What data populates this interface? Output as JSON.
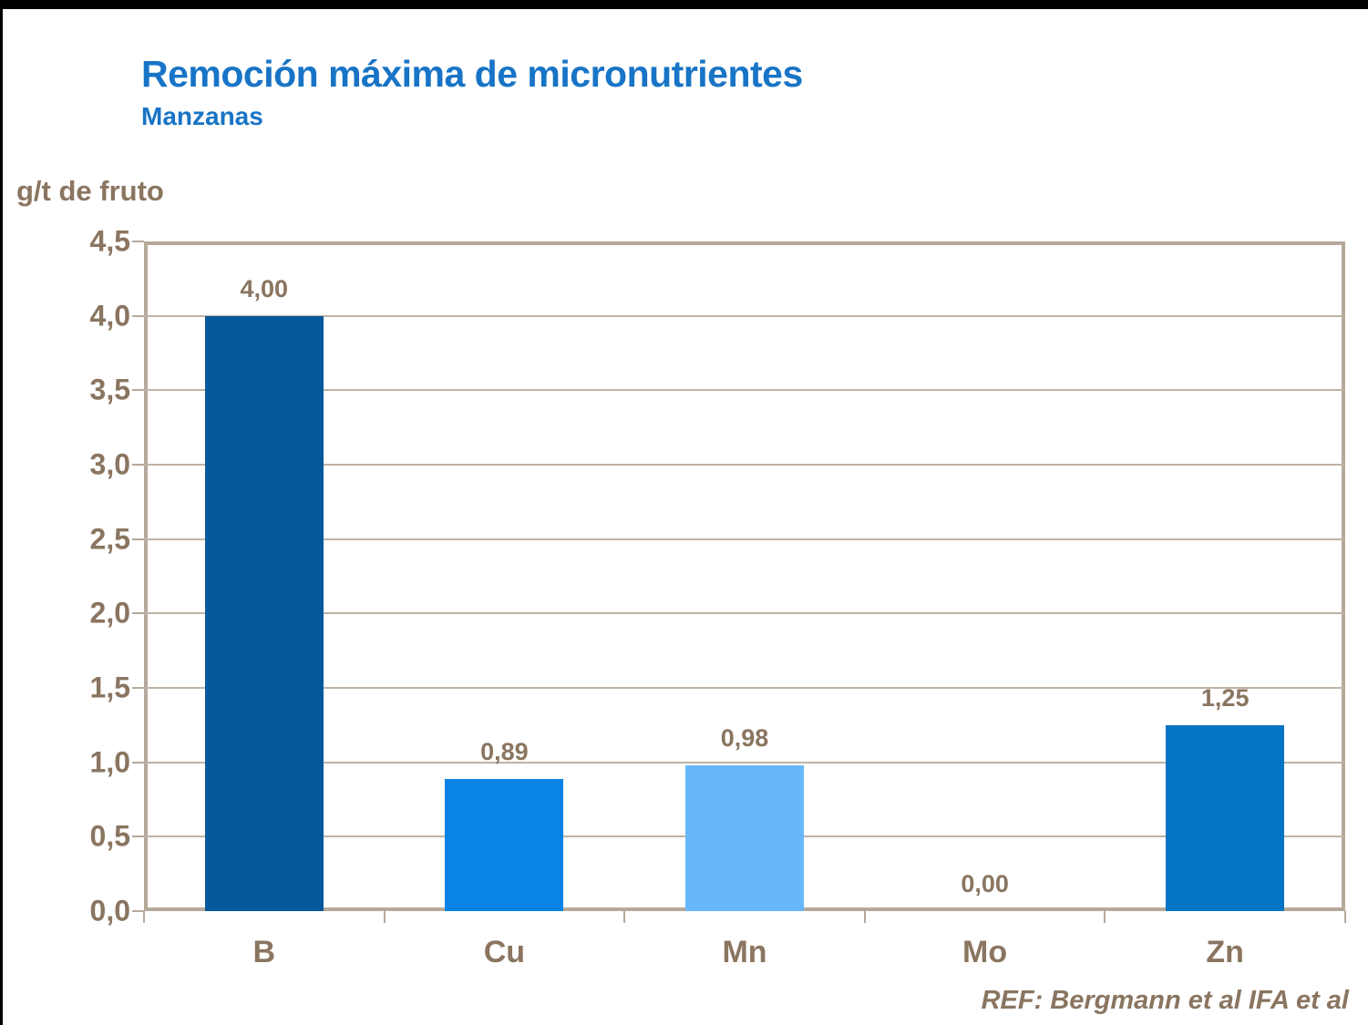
{
  "header": {
    "title": "Remoción máxima de micronutrientes",
    "subtitle": "Manzanas"
  },
  "footer": {
    "reference": "REF: Bergmann et al IFA et al"
  },
  "colors": {
    "title_blue": "#1874c6",
    "text_brown": "#8a7560",
    "plot_border": "#b5a99b",
    "gridline": "#bfb3a5",
    "frame_black": "#000000"
  },
  "chart_data": {
    "type": "bar",
    "title": "Remoción máxima de micronutrientes",
    "subtitle": "Manzanas",
    "ylabel": "g/t de fruto",
    "xlabel": "",
    "categories": [
      "B",
      "Cu",
      "Mn",
      "Mo",
      "Zn"
    ],
    "values": [
      4.0,
      0.89,
      0.98,
      0.0,
      1.25
    ],
    "value_labels": [
      "4,00",
      "0,89",
      "0,98",
      "0,00",
      "1,25"
    ],
    "bar_colors": [
      "#04589c",
      "#0984e4",
      "#67b8fa",
      "#0984e4",
      "#0674c4"
    ],
    "ylim": [
      0,
      4.5
    ],
    "ytick_step": 0.5,
    "ytick_labels": [
      "0,0",
      "0,5",
      "1,0",
      "1,5",
      "2,0",
      "2,5",
      "3,0",
      "3,5",
      "4,0",
      "4,5"
    ],
    "grid": true,
    "legend": "none",
    "annotation": "REF: Bergmann et al IFA et al"
  }
}
